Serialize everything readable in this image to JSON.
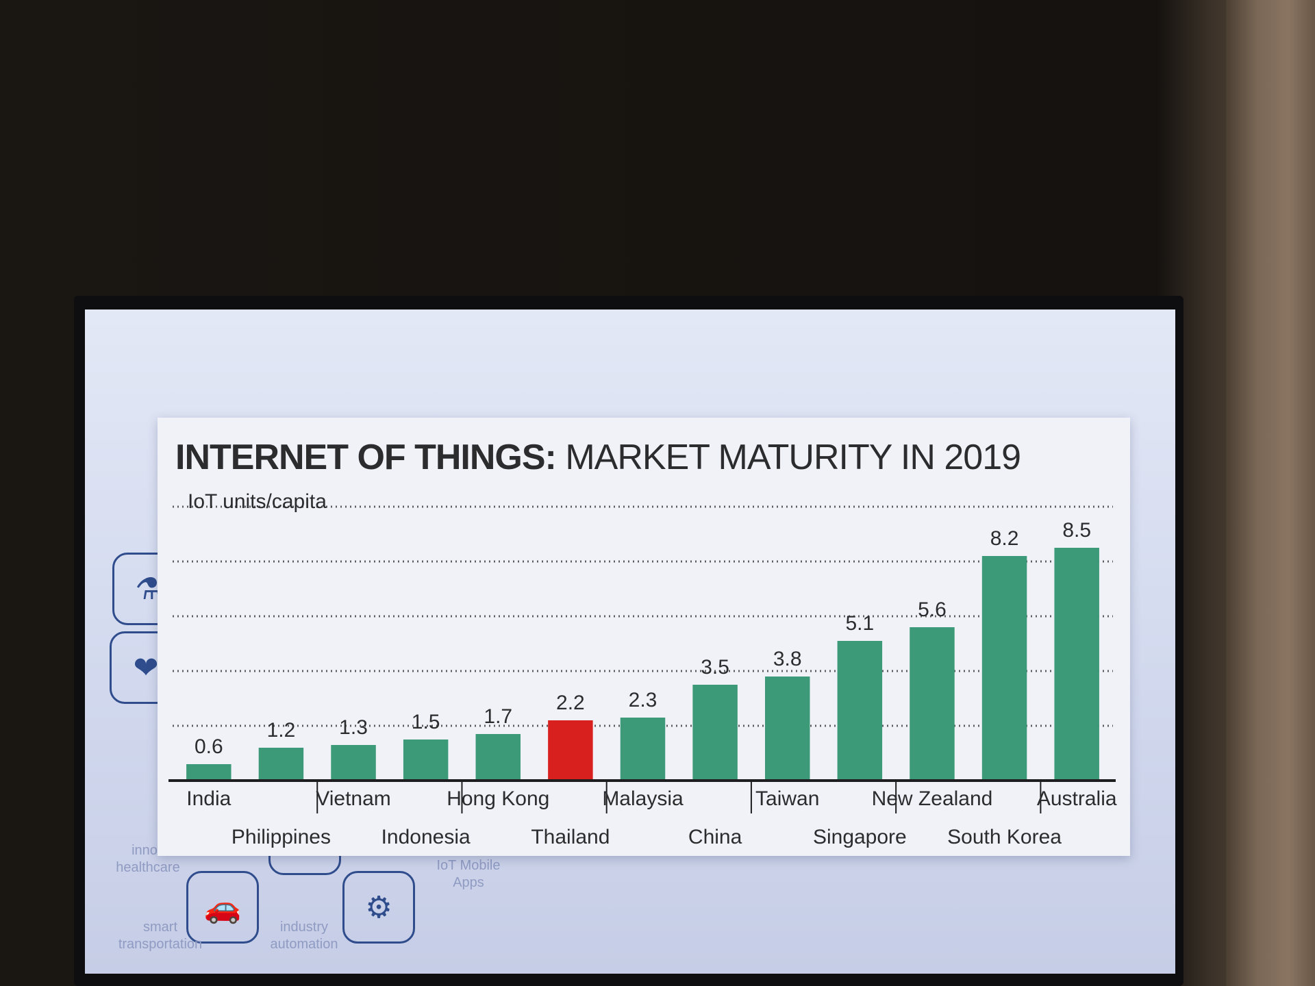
{
  "chart_data": {
    "type": "bar",
    "title_bold": "INTERNET OF THINGS:",
    "title_rest": "MARKET MATURITY IN 2019",
    "ylabel": "IoT units/capita",
    "categories": [
      "India",
      "Philippines",
      "Vietnam",
      "Indonesia",
      "Hong Kong",
      "Thailand",
      "Malaysia",
      "China",
      "Taiwan",
      "Singapore",
      "New Zealand",
      "South Korea",
      "Australia"
    ],
    "values": [
      0.6,
      1.2,
      1.3,
      1.5,
      1.7,
      2.2,
      2.3,
      3.5,
      3.8,
      5.1,
      5.6,
      8.2,
      8.5
    ],
    "value_labels": [
      "0.6",
      "1.2",
      "1.3",
      "1.5",
      "1.7",
      "2.2",
      "2.3",
      "3.5",
      "3.8",
      "5.1",
      "5.6",
      "8.2",
      "8.5"
    ],
    "highlight": "Thailand",
    "colors": {
      "bar": "#3c9a78",
      "highlight": "#d8201f",
      "axis": "#1e1e20",
      "grid": "#2c2c2e",
      "text": "#2c2c2e"
    },
    "ylim": [
      0,
      10
    ],
    "grid": true
  },
  "background_captions": [
    {
      "text": "innov\nhealthcare",
      "icon": "health-icon"
    },
    {
      "text": "smart\ntransportation",
      "icon": "car-icon"
    },
    {
      "text": "industry\nautomation",
      "icon": "robot-arm-icon"
    },
    {
      "text": "IoT Mobile\nApps",
      "icon": "mobile-gear-icon"
    }
  ]
}
